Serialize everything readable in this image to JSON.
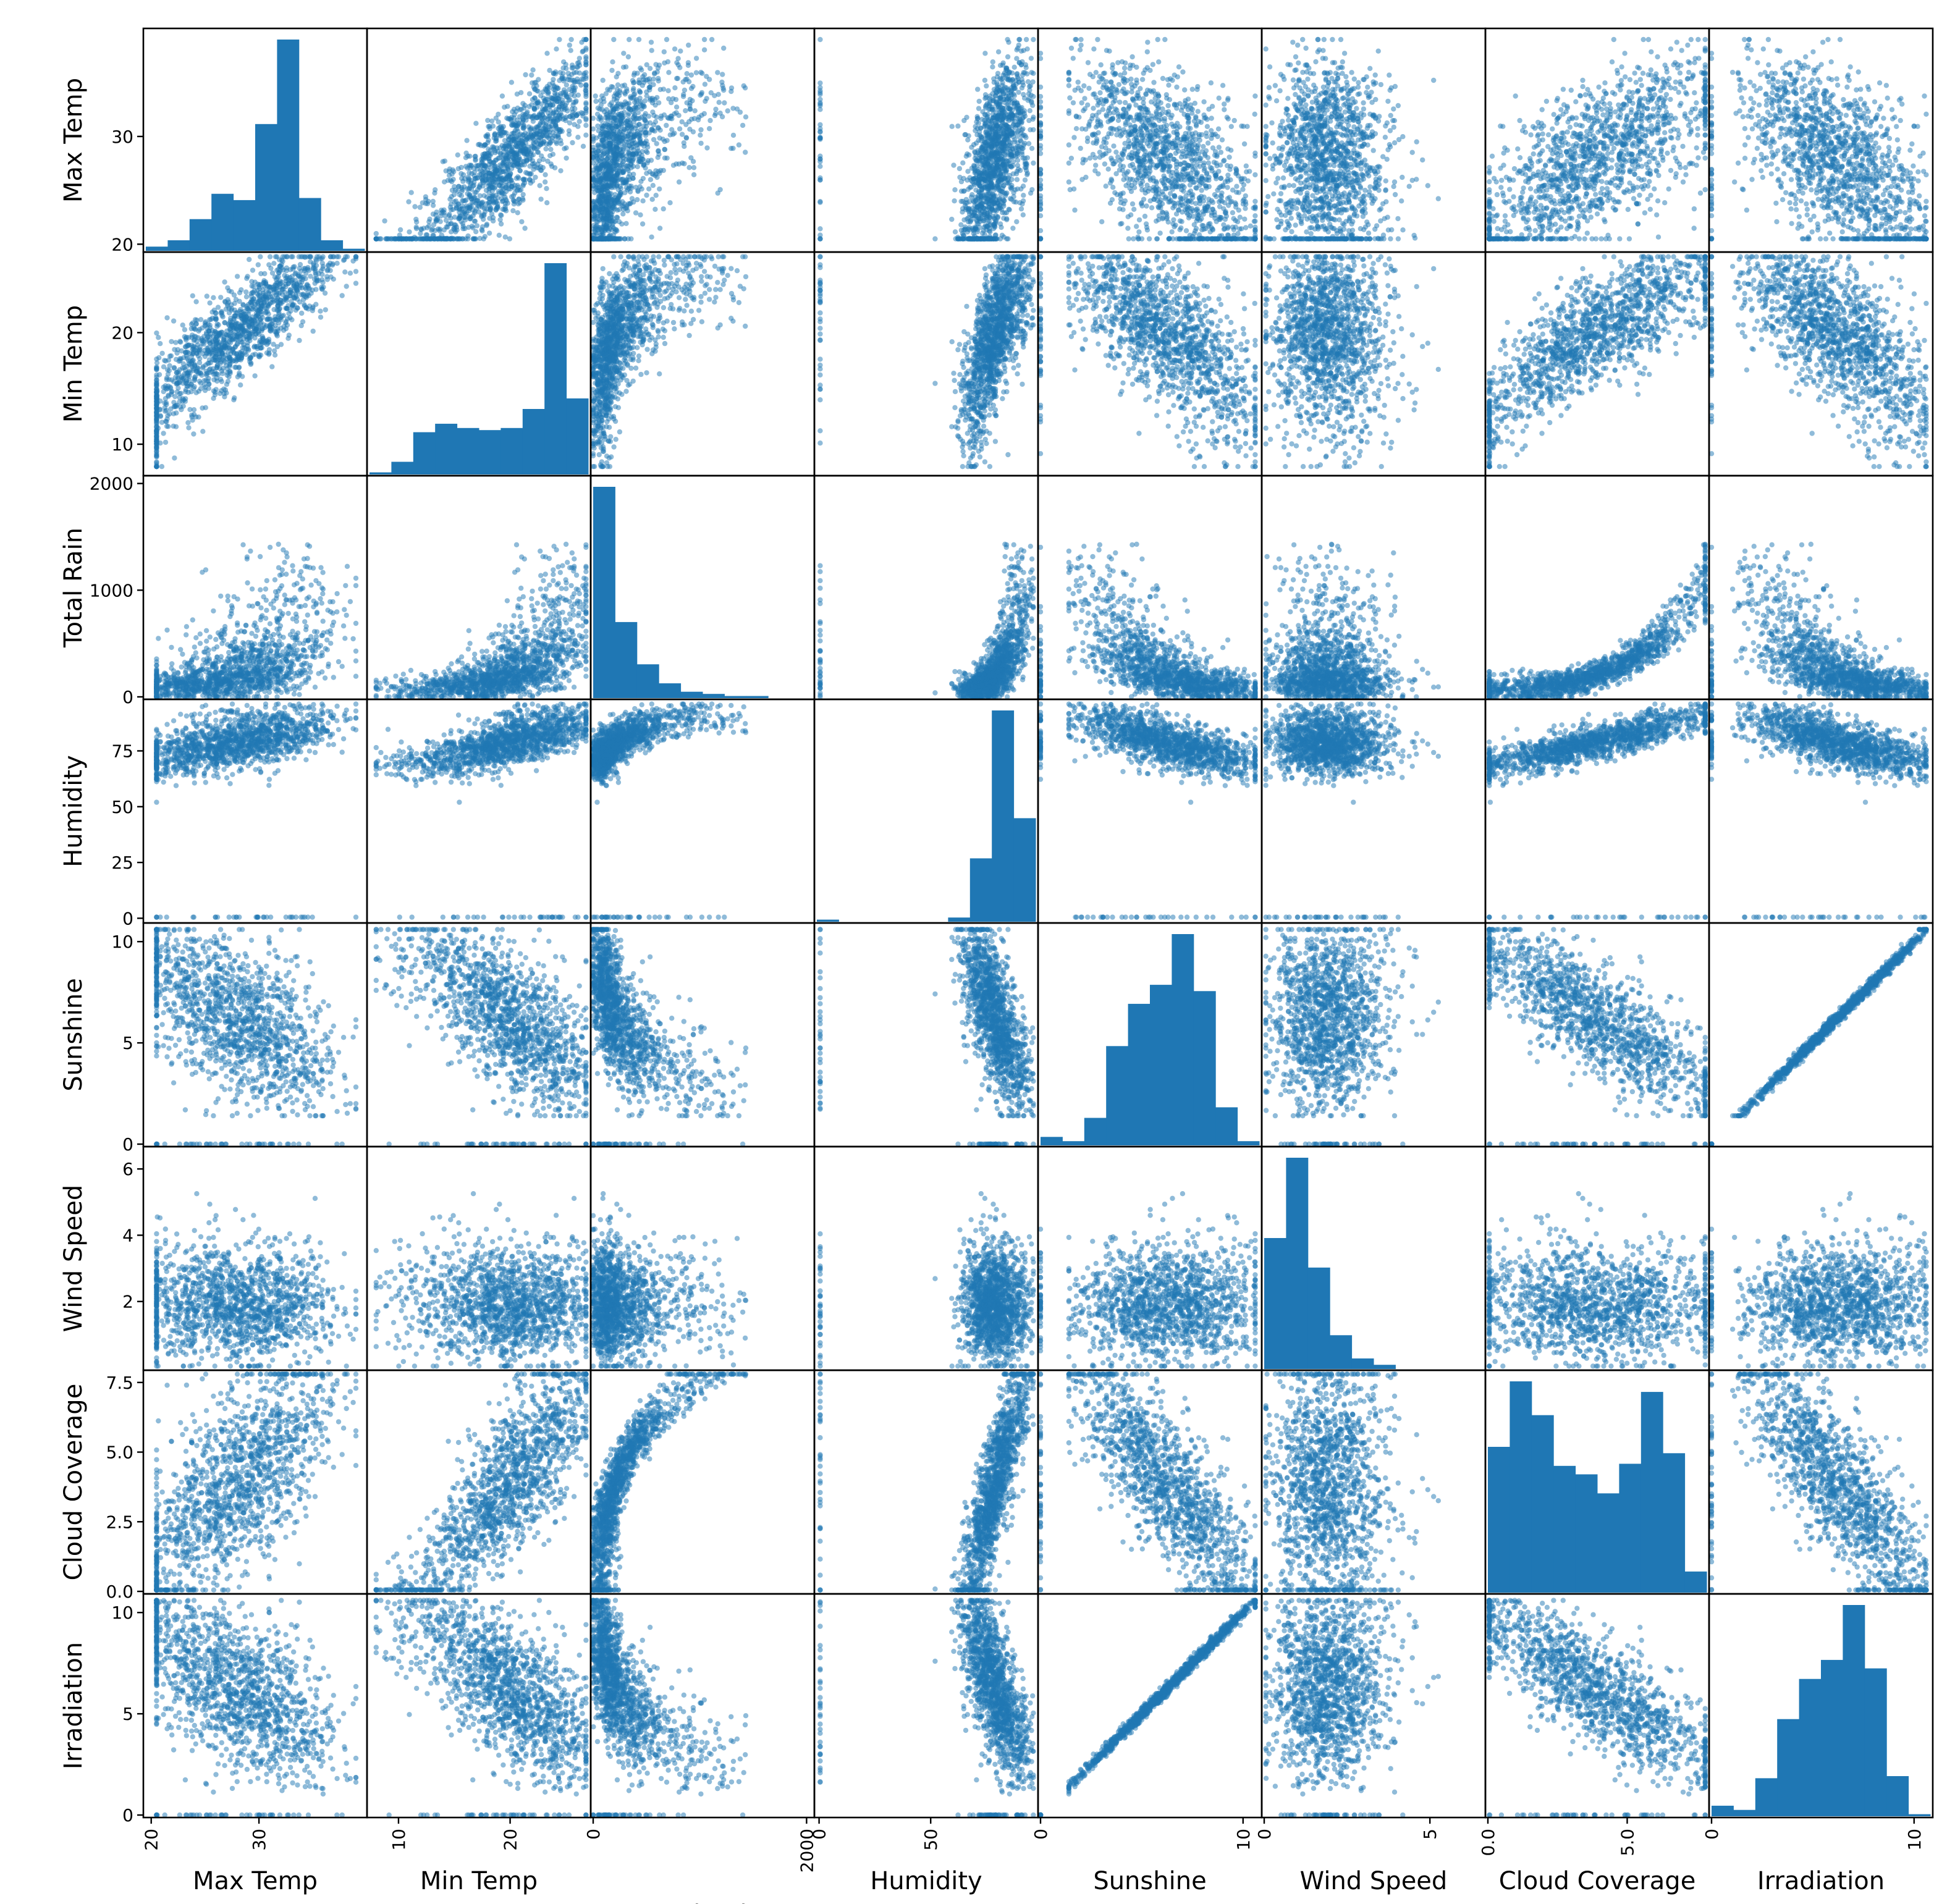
{
  "chart_data": {
    "type": "scatter_matrix",
    "variables": [
      {
        "name": "Max Temp",
        "range": [
          19.5,
          39.8
        ],
        "ticks": [
          20,
          30
        ]
      },
      {
        "name": "Min Temp",
        "range": [
          7.4,
          27.0
        ],
        "ticks": [
          10,
          20
        ]
      },
      {
        "name": "Total Rain",
        "range": [
          0,
          2050
        ],
        "ticks": [
          0,
          1000,
          2000
        ],
        "xticks": [
          0,
          2000
        ]
      },
      {
        "name": "Humidity",
        "range": [
          -1,
          97
        ],
        "ticks": [
          0,
          25,
          50,
          75
        ],
        "xticks": [
          0,
          50
        ]
      },
      {
        "name": "Sunshine",
        "range": [
          0,
          10.8
        ],
        "ticks": [
          0,
          5,
          10
        ],
        "xticks": [
          0,
          10
        ]
      },
      {
        "name": "Wind Speed",
        "range": [
          0,
          6.6
        ],
        "ticks": [
          2,
          4,
          6
        ],
        "xticks": [
          0,
          5
        ]
      },
      {
        "name": "Cloud Coverage",
        "range": [
          0,
          7.85
        ],
        "ticks": [
          0.0,
          2.5,
          5.0,
          7.5
        ],
        "xticks": [
          0,
          5
        ]
      },
      {
        "name": "Irradiation",
        "range": [
          0,
          10.8
        ],
        "ticks": [
          0,
          5,
          10
        ],
        "xticks": [
          0,
          10
        ]
      }
    ],
    "diagonal": "histogram",
    "off_diagonal": "scatter",
    "marker_color": "#1f77b4",
    "histograms": {
      "Max Temp": [
        0.02,
        0.05,
        0.15,
        0.27,
        0.24,
        0.6,
        1.0,
        0.25,
        0.05,
        0.01
      ],
      "Min Temp": [
        0.01,
        0.06,
        0.2,
        0.24,
        0.22,
        0.21,
        0.22,
        0.31,
        1.0,
        0.36
      ],
      "Total Rain": [
        1.0,
        0.36,
        0.16,
        0.07,
        0.03,
        0.02,
        0.01,
        0.01,
        0.0,
        0.0
      ],
      "Humidity": [
        0.01,
        0.0,
        0.0,
        0.0,
        0.0,
        0.0,
        0.02,
        0.3,
        1.0,
        0.49
      ],
      "Sunshine": [
        0.04,
        0.02,
        0.13,
        0.47,
        0.67,
        0.76,
        1.0,
        0.73,
        0.18,
        0.02
      ],
      "Wind Speed": [
        0.62,
        1.0,
        0.48,
        0.16,
        0.05,
        0.02,
        0.0,
        0.0,
        0.0,
        0.0
      ],
      "Cloud Coverage": [
        0.69,
        1.0,
        0.84,
        0.6,
        0.56,
        0.47,
        0.61,
        0.95,
        0.66,
        0.1
      ],
      "Irradiation": [
        0.05,
        0.03,
        0.18,
        0.46,
        0.65,
        0.74,
        1.0,
        0.7,
        0.19,
        0.01
      ]
    }
  }
}
